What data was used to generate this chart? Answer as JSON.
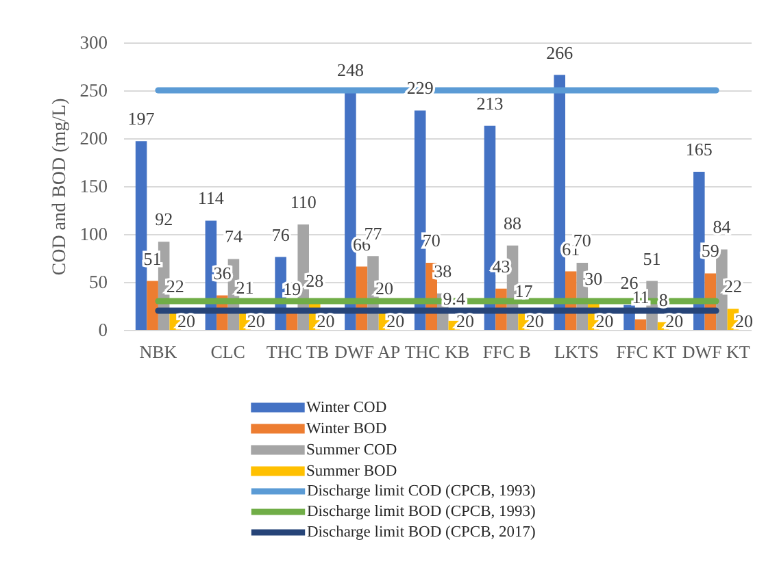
{
  "chart_data": {
    "type": "bar",
    "ylabel": "COD and BOD (mg/L)",
    "categories": [
      "NBK",
      "CLC",
      "THC TB",
      "DWF AP",
      "THC KB",
      "FFC B",
      "LKTS",
      "FFC KT",
      "DWF KT"
    ],
    "ylim": [
      0,
      300
    ],
    "yticks": [
      0,
      50,
      100,
      150,
      200,
      250,
      300
    ],
    "grid": "y",
    "legend": "bottom",
    "series": [
      {
        "name": "Winter COD",
        "color": "#4472c4",
        "values": [
          197,
          114,
          76,
          248,
          229,
          213,
          266,
          26,
          165
        ],
        "value_labels": [
          "197",
          "114",
          "76",
          "248",
          "229",
          "213",
          "266",
          "26",
          "165"
        ]
      },
      {
        "name": "Winter BOD",
        "color": "#ed7d31",
        "values": [
          51,
          36,
          19,
          66,
          70,
          43,
          61,
          11,
          59
        ],
        "value_labels": [
          "51",
          "36",
          "19",
          "66",
          "70",
          "43",
          "61",
          "11",
          "59"
        ]
      },
      {
        "name": "Summer COD",
        "color": "#a5a5a5",
        "values": [
          92,
          74,
          110,
          77,
          38,
          88,
          70,
          51,
          84
        ],
        "value_labels": [
          "92",
          "74",
          "110",
          "77",
          "38",
          "88",
          "70",
          "51",
          "84"
        ]
      },
      {
        "name": "Summer BOD",
        "color": "#ffc000",
        "values": [
          22,
          21,
          28,
          20,
          9.4,
          17,
          30,
          8,
          22
        ],
        "value_labels": [
          "22",
          "21",
          "28",
          "20",
          "9.4",
          "17",
          "30",
          "8",
          "22"
        ]
      },
      {
        "name": "Discharge limit COD (CPCB, 1993)",
        "type": "line",
        "color": "#5b9bd5",
        "values": [
          250,
          250,
          250,
          250,
          250,
          250,
          250,
          250,
          250
        ]
      },
      {
        "name": "Discharge limit BOD (CPCB, 1993)",
        "type": "line",
        "color": "#70ad47",
        "values": [
          30,
          30,
          30,
          30,
          30,
          30,
          30,
          30,
          30
        ]
      },
      {
        "name": "Discharge limit BOD (CPCB, 2017)",
        "type": "line",
        "color": "#264478",
        "values": [
          20,
          20,
          20,
          20,
          20,
          20,
          20,
          20,
          20
        ],
        "value_labels": [
          "20",
          "20",
          "20",
          "20",
          "20",
          "20",
          "20",
          "20",
          "20"
        ]
      }
    ]
  }
}
